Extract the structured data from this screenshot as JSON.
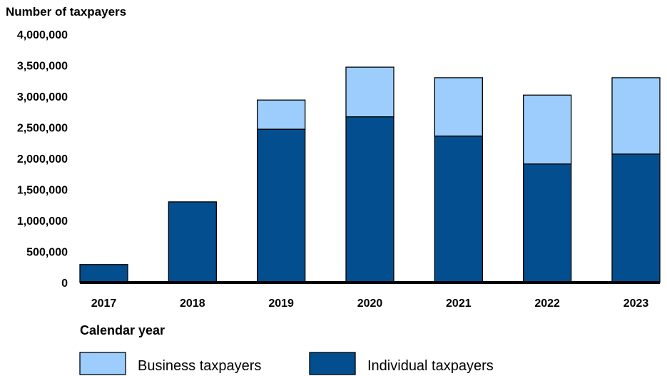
{
  "chart_data": {
    "type": "bar",
    "stacked": true,
    "title": "",
    "ylabel": "Number of taxpayers",
    "xlabel": "Calendar year",
    "categories": [
      "2017",
      "2018",
      "2019",
      "2020",
      "2021",
      "2022",
      "2023"
    ],
    "ylim": [
      0,
      4000000
    ],
    "yticks": [
      0,
      500000,
      1000000,
      1500000,
      2000000,
      2500000,
      3000000,
      3500000,
      4000000
    ],
    "ytick_labels": [
      "0",
      "500,000",
      "1,000,000",
      "1,500,000",
      "2,000,000",
      "2,500,000",
      "3,000,000",
      "3,500,000",
      "4,000,000"
    ],
    "grid": false,
    "legend_position": "bottom",
    "series": [
      {
        "name": "Individual taxpayers",
        "color": "#034E8F",
        "values": [
          290000,
          1300000,
          2470000,
          2670000,
          2360000,
          1910000,
          2070000
        ]
      },
      {
        "name": "Business taxpayers",
        "color": "#9DCDFD",
        "values": [
          0,
          0,
          470000,
          800000,
          940000,
          1110000,
          1230000
        ]
      }
    ]
  }
}
